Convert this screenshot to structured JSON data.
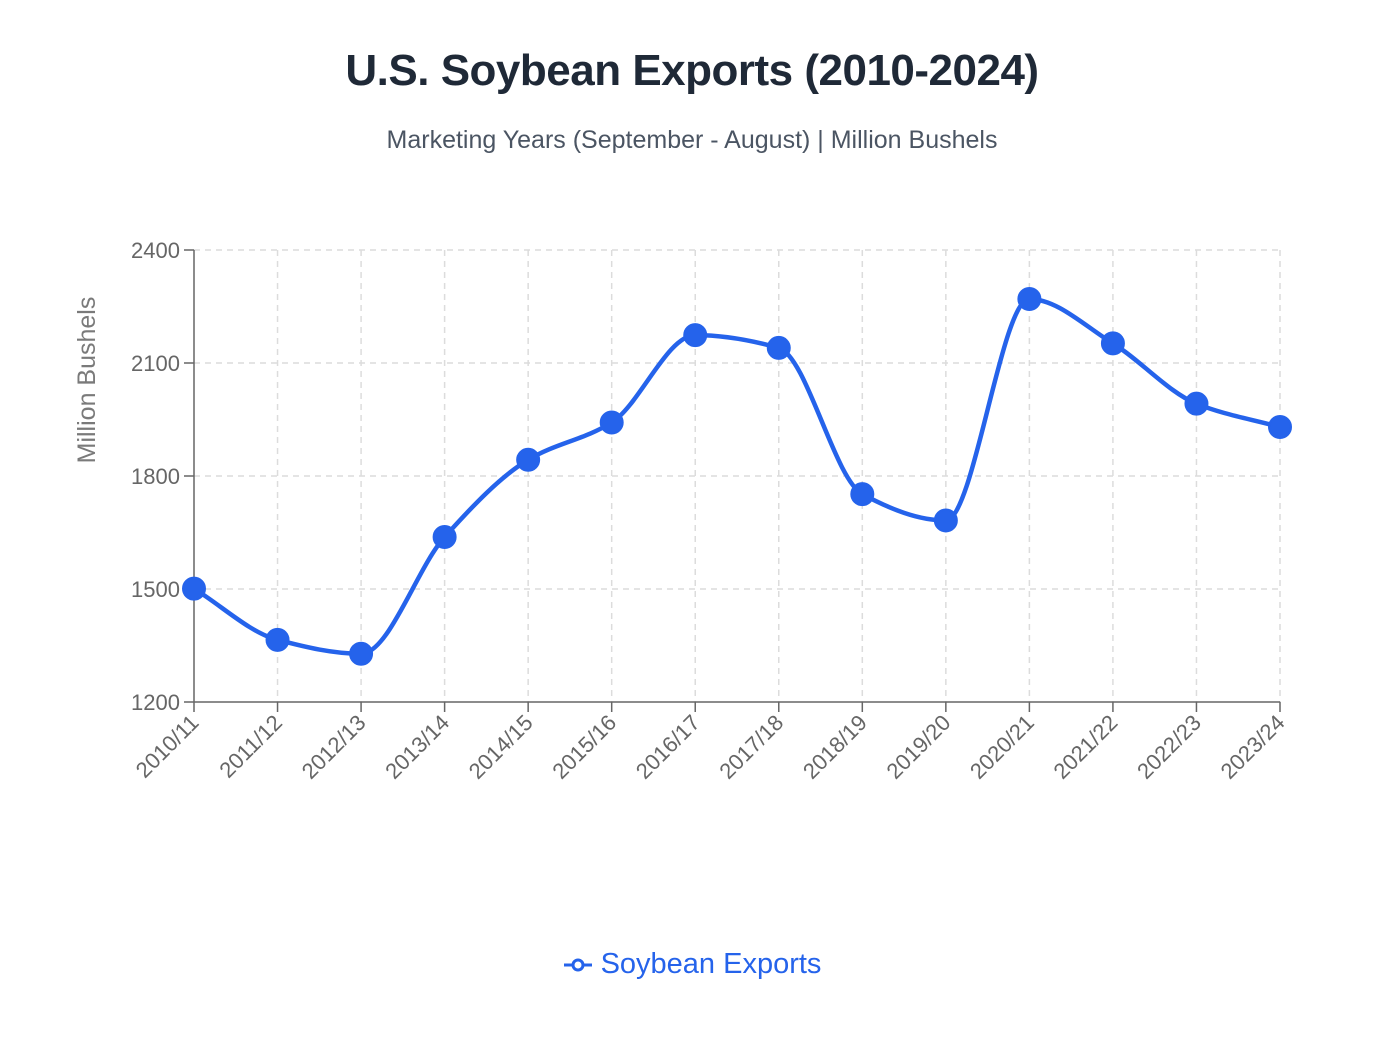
{
  "chart_data": {
    "type": "line",
    "title": "U.S. Soybean Exports (2010-2024)",
    "subtitle": "Marketing Years (September - August) | Million Bushels",
    "xlabel": "",
    "ylabel": "Million Bushels",
    "categories": [
      "2010/11",
      "2011/12",
      "2012/13",
      "2013/14",
      "2014/15",
      "2015/16",
      "2016/17",
      "2017/18",
      "2018/19",
      "2019/20",
      "2020/21",
      "2021/22",
      "2022/23",
      "2023/24"
    ],
    "series": [
      {
        "name": "Soybean Exports",
        "color": "#2563eb",
        "values": [
          1501,
          1365,
          1328,
          1638,
          1843,
          1942,
          2174,
          2140,
          1752,
          1682,
          2270,
          2152,
          1992,
          1930
        ]
      }
    ],
    "ylim": [
      1200,
      2400
    ],
    "yticks": [
      1200,
      1500,
      1800,
      2100,
      2400
    ],
    "grid": true,
    "legend": "bottom",
    "smooth": true
  }
}
